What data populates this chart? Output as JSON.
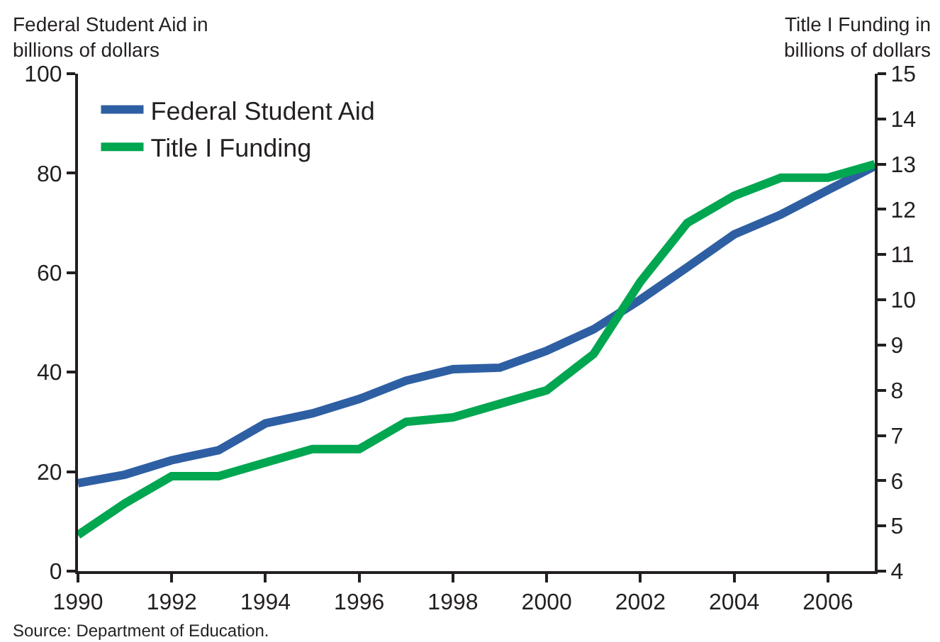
{
  "chart_data": {
    "type": "line",
    "ylabel": "Federal Student Aid in\nbillions of dollars",
    "y2label": "Title I Funding in\nbillions of dollars",
    "annotations": [
      "Source: Department of Education."
    ],
    "x": [
      1990,
      1991,
      1992,
      1993,
      1994,
      1995,
      1996,
      1997,
      1998,
      1999,
      2000,
      2001,
      2002,
      2003,
      2004,
      2005,
      2006,
      2007
    ],
    "series": [
      {
        "name": "Federal Student Aid",
        "color": "#2e5fa3",
        "values": [
          17.7,
          19.4,
          22.3,
          24.3,
          29.7,
          31.7,
          34.6,
          38.3,
          40.6,
          40.9,
          44.3,
          48.6,
          54.6,
          61.1,
          67.7,
          71.7,
          76.6,
          81.4
        ]
      },
      {
        "name": "Title I Funding",
        "color": "#00a650",
        "axis": "y2",
        "values": [
          4.8,
          5.5,
          6.1,
          6.1,
          6.4,
          6.7,
          6.7,
          7.3,
          7.4,
          7.7,
          8.0,
          8.8,
          10.4,
          11.7,
          12.3,
          12.7,
          12.7,
          13.0
        ]
      }
    ],
    "xlim": [
      1990,
      2007
    ],
    "xticks": [
      1990,
      1992,
      1994,
      1996,
      1998,
      2000,
      2002,
      2004,
      2006
    ],
    "ylim": [
      0,
      100
    ],
    "yticks": [
      0,
      20,
      40,
      60,
      80,
      100
    ],
    "y2lim": [
      4,
      15
    ],
    "y2ticks": [
      4,
      5,
      6,
      7,
      8,
      9,
      10,
      11,
      12,
      13,
      14,
      15
    ],
    "grid": false,
    "legend": "top left",
    "marker": "none",
    "line_style": "solid"
  }
}
